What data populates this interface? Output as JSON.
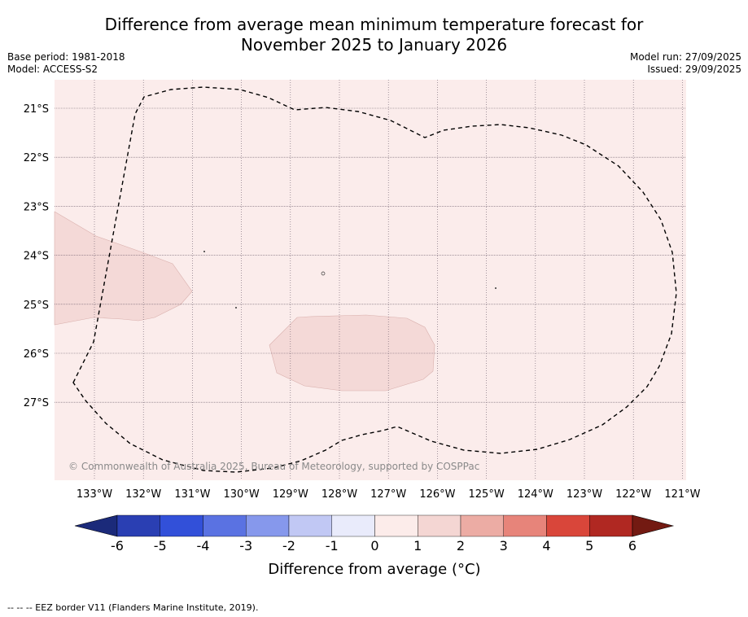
{
  "title": {
    "line1": "Difference from average mean minimum temperature forecast for",
    "line2": "November 2025 to January 2026"
  },
  "meta_left": {
    "base_period": "Base period: 1981-2018",
    "model": "Model: ACCESS-S2"
  },
  "meta_right": {
    "model_run": "Model run: 27/09/2025",
    "issued": "Issued: 29/09/2025"
  },
  "map": {
    "copyright": "© Commonwealth of Australia 2025, Bureau of Meteorology, supported by COSPPac",
    "lon_labels": [
      "133°W",
      "132°W",
      "131°W",
      "130°W",
      "129°W",
      "128°W",
      "127°W",
      "126°W",
      "125°W",
      "124°W",
      "123°W",
      "122°W",
      "121°W"
    ],
    "lat_labels": [
      "21°S",
      "22°S",
      "23°S",
      "24°S",
      "25°S",
      "26°S",
      "27°S"
    ],
    "background_color": "#fbeceb",
    "anomaly_fill_color": "#f4d9d7"
  },
  "colorbar": {
    "title": "Difference from average (°C)",
    "tick_labels": [
      "-6",
      "-5",
      "-4",
      "-3",
      "-2",
      "-1",
      "0",
      "1",
      "2",
      "3",
      "4",
      "5",
      "6"
    ],
    "colors": [
      "#1b2a7a",
      "#2a3fb3",
      "#3250d9",
      "#5a72e2",
      "#8698ec",
      "#c1c8f4",
      "#e9ebfb",
      "#fcecea",
      "#f4d6d3",
      "#ecaca4",
      "#e7847a",
      "#d9463a",
      "#b02822",
      "#731a12"
    ]
  },
  "footer": {
    "legend": "--  --  -- EEZ border V11 (Flanders Marine Institute, 2019)."
  }
}
